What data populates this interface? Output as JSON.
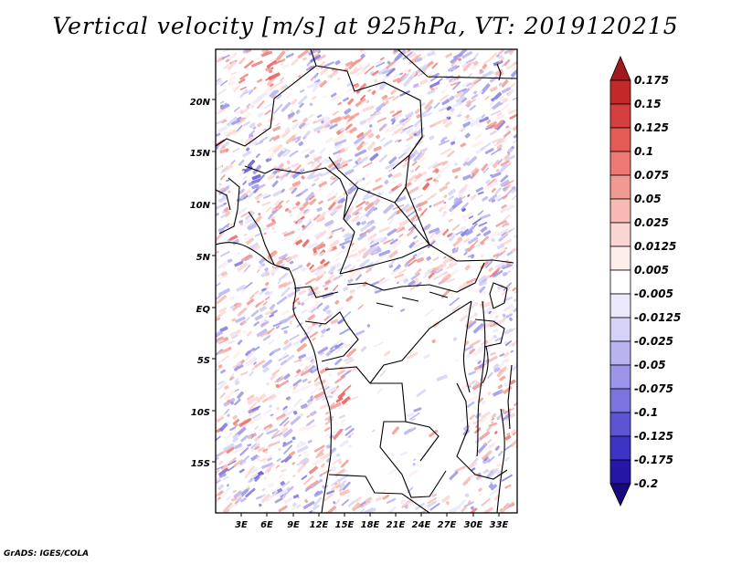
{
  "title": "Vertical velocity [m/s] at 925hPa, VT: 2019120215",
  "footer": "GrADS: IGES/COLA",
  "lat_labels": [
    "20N",
    "15N",
    "10N",
    "5N",
    "EQ",
    "5S",
    "10S",
    "15S"
  ],
  "lon_labels": [
    "3E",
    "6E",
    "9E",
    "12E",
    "15E",
    "18E",
    "21E",
    "24E",
    "27E",
    "30E",
    "33E"
  ],
  "colorbar": {
    "labels": [
      "0.175",
      "0.15",
      "0.125",
      "0.1",
      "0.075",
      "0.05",
      "0.025",
      "0.0125",
      "0.005",
      "-0.005",
      "-0.0125",
      "-0.025",
      "-0.05",
      "-0.075",
      "-0.1",
      "-0.125",
      "-0.175",
      "-0.2"
    ],
    "colors": [
      "#a11a1f",
      "#c22a2a",
      "#d63f3f",
      "#e55b55",
      "#ec7a72",
      "#f19a92",
      "#f6bab3",
      "#fad6d2",
      "#fdeeec",
      "#ffffff",
      "#ebe9fb",
      "#d4d2f6",
      "#b8b4f0",
      "#9a95e8",
      "#7b74df",
      "#5c54d2",
      "#3d34c3",
      "#2516a6",
      "#160a7c"
    ]
  }
}
